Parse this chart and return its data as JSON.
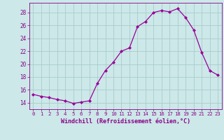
{
  "x": [
    0,
    1,
    2,
    3,
    4,
    5,
    6,
    7,
    8,
    9,
    10,
    11,
    12,
    13,
    14,
    15,
    16,
    17,
    18,
    19,
    20,
    21,
    22,
    23
  ],
  "y": [
    15.3,
    15.0,
    14.8,
    14.5,
    14.3,
    13.9,
    14.1,
    14.3,
    17.0,
    19.0,
    20.3,
    22.0,
    22.5,
    25.8,
    26.6,
    28.0,
    28.3,
    28.1,
    28.6,
    27.2,
    25.3,
    21.8,
    19.0,
    18.3
  ],
  "line_color": "#990099",
  "marker": "D",
  "marker_size": 2.0,
  "bg_color": "#cce8e8",
  "grid_color": "#aacccc",
  "xlabel": "Windchill (Refroidissement éolien,°C)",
  "xlabel_color": "#880088",
  "tick_color": "#880088",
  "ylim": [
    13.0,
    29.5
  ],
  "yticks": [
    14,
    16,
    18,
    20,
    22,
    24,
    26,
    28
  ],
  "xlim": [
    -0.5,
    23.5
  ],
  "xticks": [
    0,
    1,
    2,
    3,
    4,
    5,
    6,
    7,
    8,
    9,
    10,
    11,
    12,
    13,
    14,
    15,
    16,
    17,
    18,
    19,
    20,
    21,
    22,
    23
  ]
}
